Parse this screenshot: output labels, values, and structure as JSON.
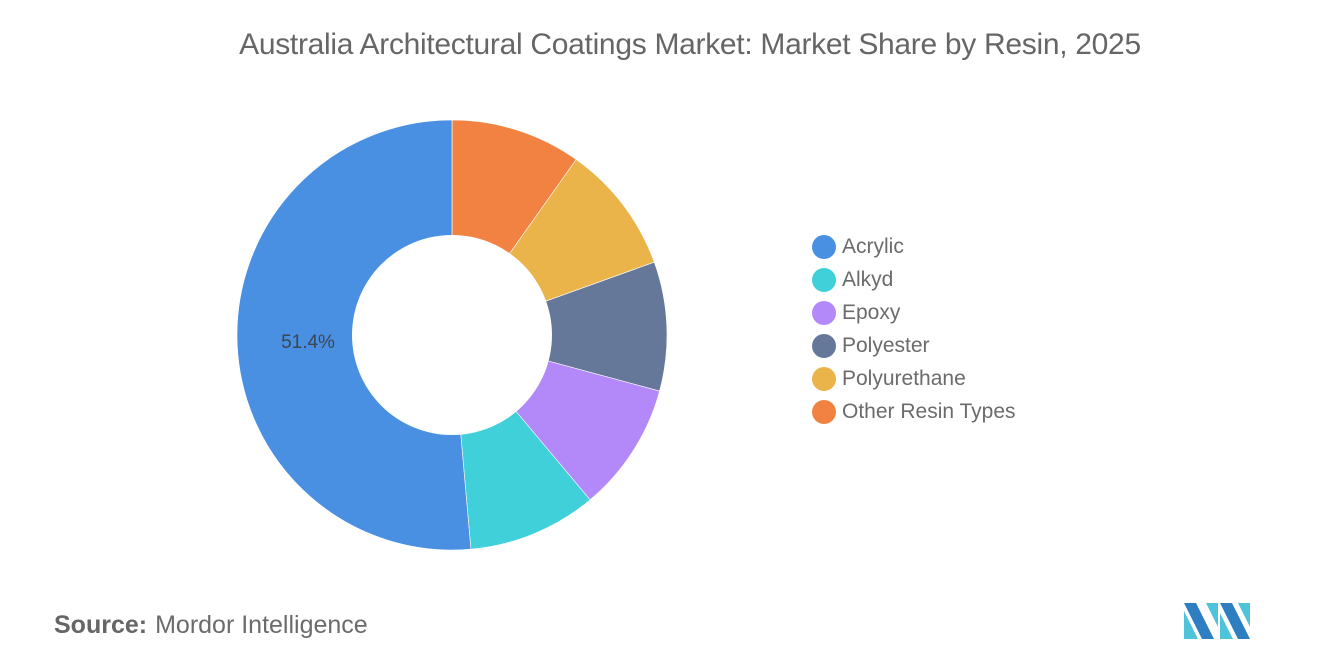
{
  "title": "Australia Architectural Coatings Market: Market Share by Resin, 2025",
  "source": {
    "label": "Source:",
    "value": "Mordor Intelligence"
  },
  "chart_data": {
    "type": "pie",
    "variant": "donut",
    "title": "Australia Architectural Coatings Market: Market Share by Resin, 2025",
    "categories": [
      "Acrylic",
      "Alkyd",
      "Epoxy",
      "Polyester",
      "Polyurethane",
      "Other Resin Types"
    ],
    "values": [
      51.4,
      9.7,
      9.7,
      9.7,
      9.7,
      9.8
    ],
    "unit": "%",
    "colors": [
      "#4a90e2",
      "#40d0da",
      "#b388f9",
      "#657899",
      "#ebb44a",
      "#f28242"
    ],
    "data_labels": [
      {
        "category": "Acrylic",
        "text": "51.4%"
      }
    ],
    "legend_position": "right",
    "start_angle": "top, clockwise from Other Resin Types"
  },
  "legend": {
    "items": [
      {
        "label": "Acrylic",
        "color": "#4a90e2"
      },
      {
        "label": "Alkyd",
        "color": "#40d0da"
      },
      {
        "label": "Epoxy",
        "color": "#b388f9"
      },
      {
        "label": "Polyester",
        "color": "#657899"
      },
      {
        "label": "Polyurethane",
        "color": "#ebb44a"
      },
      {
        "label": "Other Resin Types",
        "color": "#f28242"
      }
    ]
  },
  "labels": {
    "acrylic_pct": "51.4%"
  }
}
